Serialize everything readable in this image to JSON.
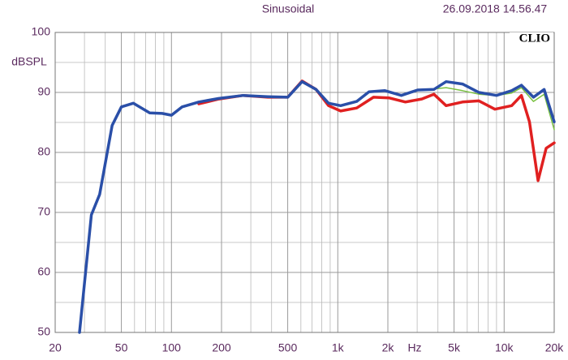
{
  "chart_data": {
    "type": "line",
    "title": "Sinusoidal",
    "timestamp": "26.09.2018 14.56.47",
    "brand": "CLIO",
    "y_label": "dBSPL",
    "x_label": "Hz",
    "log_x": true,
    "grid": true,
    "xlim": [
      20,
      20000
    ],
    "ylim": [
      50,
      100
    ],
    "xticks": [
      20,
      50,
      100,
      200,
      500,
      {
        "value": 1000,
        "label": "1k"
      },
      {
        "value": 2000,
        "label": "2k"
      },
      {
        "value": 5000,
        "label": "5k"
      },
      {
        "value": 10000,
        "label": "10k"
      },
      {
        "value": 20000,
        "label": "20k"
      }
    ],
    "xminor": [
      30,
      40,
      60,
      70,
      80,
      90,
      300,
      400,
      600,
      700,
      800,
      900,
      3000,
      4000,
      6000,
      7000,
      8000,
      9000
    ],
    "yticks": [
      50,
      60,
      70,
      80,
      90,
      100
    ],
    "yminor": [
      55,
      65,
      75,
      85,
      95
    ],
    "series": [
      {
        "color": "#7ac142",
        "width": 1.5,
        "x": [
          3020,
          4480,
          5620,
          7050,
          9000,
          11100,
          12700,
          15000,
          17400,
          20000
        ],
        "values": [
          90.3,
          90.8,
          90.3,
          89.7,
          89.5,
          89.9,
          90.8,
          88.5,
          89.7,
          83.8
        ]
      },
      {
        "color": "#e02020",
        "width": 3.5,
        "x": [
          146,
          193,
          270,
          380,
          500,
          610,
          740,
          880,
          1040,
          1300,
          1640,
          2030,
          2550,
          3200,
          3780,
          4480,
          5620,
          7050,
          8800,
          11100,
          12700,
          14200,
          16000,
          17900,
          20000
        ],
        "values": [
          88.1,
          88.9,
          89.5,
          89.2,
          89.2,
          91.9,
          90.5,
          87.8,
          86.9,
          87.4,
          89.2,
          89.1,
          88.4,
          88.9,
          89.7,
          87.8,
          88.4,
          88.6,
          87.2,
          87.8,
          89.5,
          85.1,
          75.3,
          80.7,
          81.6
        ]
      },
      {
        "color": "#2a4fa8",
        "width": 3.5,
        "x": [
          28,
          33,
          37,
          44,
          50,
          59,
          74,
          88,
          100,
          116,
          146,
          193,
          270,
          380,
          500,
          610,
          740,
          880,
          1040,
          1300,
          1540,
          1920,
          2410,
          3020,
          3780,
          4480,
          5620,
          7050,
          9000,
          11100,
          12700,
          15000,
          17400,
          20000
        ],
        "values": [
          50,
          69.6,
          73,
          84.5,
          87.6,
          88.2,
          86.6,
          86.5,
          86.2,
          87.6,
          88.4,
          89,
          89.5,
          89.3,
          89.2,
          91.8,
          90.5,
          88.2,
          87.8,
          88.5,
          90.1,
          90.3,
          89.5,
          90.4,
          90.5,
          91.8,
          91.4,
          90,
          89.5,
          90.3,
          91.2,
          89.2,
          90.5,
          85.1
        ]
      }
    ]
  }
}
